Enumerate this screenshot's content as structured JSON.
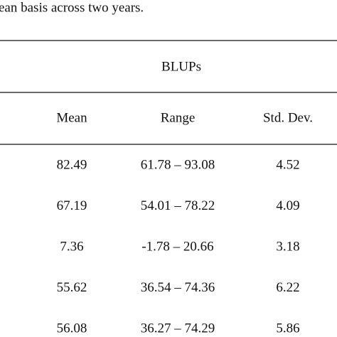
{
  "caption": "ean basis across two years.",
  "table": {
    "group_header": "BLUPs",
    "columns": [
      "Mean",
      "Range",
      "Std. Dev."
    ],
    "rows": [
      [
        "82.49",
        "61.78 – 93.08",
        "4.52"
      ],
      [
        "67.19",
        "54.01 – 78.22",
        "4.09"
      ],
      [
        "7.36",
        "-1.78 – 20.66",
        "3.18"
      ],
      [
        "55.62",
        "36.54 – 74.36",
        "6.22"
      ],
      [
        "56.08",
        "36.27 – 74.29",
        "5.86"
      ]
    ]
  }
}
